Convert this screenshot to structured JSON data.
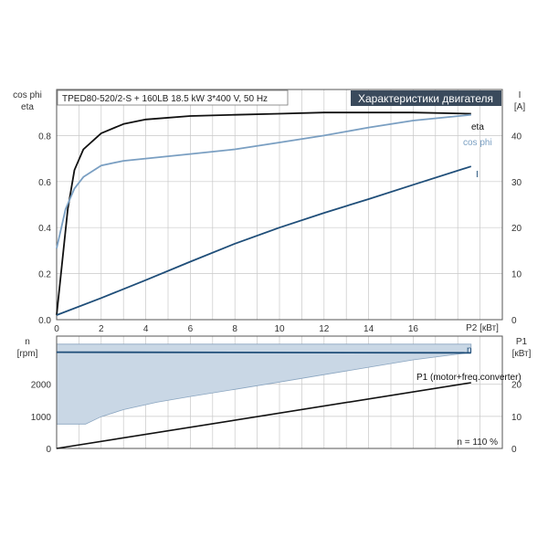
{
  "header": {
    "pump_info": "TPED80-520/2-S + 160LB   18.5 kW   3*400 V, 50 Hz",
    "section_title": "Характеристики двигателя"
  },
  "footer_note": "n = 110 %",
  "colors": {
    "eta": "#111111",
    "cos_phi": "#7a9fc2",
    "current": "#1f4e79",
    "speed_line": "#1f4e79",
    "speed_band_fill": "#c9d7e5",
    "power_line": "#111111",
    "badge_bg": "#3a4a5c"
  },
  "chart_data": [
    {
      "type": "line",
      "xlabel": "P2 [кВт]",
      "ylabel_left": [
        "cos phi",
        "eta"
      ],
      "ylabel_right": [
        "I",
        "[A]"
      ],
      "xlim": [
        0,
        20
      ],
      "x_ticks": [
        0,
        2,
        4,
        6,
        8,
        10,
        12,
        14,
        16
      ],
      "x_tick_labels": [
        "0",
        "2",
        "4",
        "6",
        "8",
        "10",
        "12",
        "14",
        "16"
      ],
      "ylim_left": [
        0,
        1.0
      ],
      "y_ticks_left": [
        0,
        0.2,
        0.4,
        0.6,
        0.8
      ],
      "y_tick_labels_left": [
        "0.0",
        "0.2",
        "0.4",
        "0.6",
        "0.8"
      ],
      "ylim_right": [
        0,
        50
      ],
      "y_ticks_right": [
        0,
        10,
        20,
        30,
        40
      ],
      "y_tick_labels_right": [
        "0",
        "10",
        "20",
        "30",
        "40"
      ],
      "grid": true,
      "series": [
        {
          "name": "eta",
          "axis": "left",
          "x": [
            0,
            0.5,
            0.8,
            1.2,
            2,
            3,
            4,
            6,
            8,
            10,
            12,
            14,
            16,
            18.6
          ],
          "y": [
            0.02,
            0.48,
            0.65,
            0.74,
            0.81,
            0.85,
            0.87,
            0.885,
            0.89,
            0.895,
            0.9,
            0.9,
            0.9,
            0.895
          ]
        },
        {
          "name": "cos phi",
          "axis": "left",
          "x": [
            0,
            0.4,
            0.8,
            1.2,
            2,
            3,
            4,
            6,
            8,
            10,
            12,
            14,
            16,
            18.6
          ],
          "y": [
            0.31,
            0.48,
            0.57,
            0.62,
            0.67,
            0.69,
            0.7,
            0.72,
            0.74,
            0.77,
            0.8,
            0.835,
            0.865,
            0.89
          ]
        },
        {
          "name": "I",
          "axis": "right",
          "x": [
            0,
            2,
            4,
            6,
            8,
            10,
            12,
            14,
            16,
            18.6
          ],
          "y": [
            1,
            4.7,
            8.6,
            12.6,
            16.5,
            20,
            23.2,
            26.2,
            29.3,
            33.3
          ]
        }
      ]
    },
    {
      "type": "line",
      "xlabel": "",
      "ylabel_left": [
        "n",
        "[rpm]"
      ],
      "ylabel_right": [
        "P1",
        "[кВт]"
      ],
      "xlim": [
        0,
        20
      ],
      "ylim_left": [
        0,
        3500
      ],
      "y_ticks_left": [
        0,
        1000,
        2000
      ],
      "y_tick_labels_left": [
        "0",
        "1000",
        "2000"
      ],
      "ylim_right": [
        0,
        35
      ],
      "y_ticks_right": [
        0,
        10,
        20
      ],
      "y_tick_labels_right": [
        "0",
        "10",
        "20"
      ],
      "grid": true,
      "series": [
        {
          "name": "n",
          "axis": "left",
          "x": [
            0,
            18.6
          ],
          "y": [
            3000,
            2980
          ]
        },
        {
          "name": "P1 (motor+freq.converter)",
          "axis": "right",
          "x": [
            0,
            18.6
          ],
          "y": [
            0,
            20.5
          ]
        }
      ],
      "speed_range": {
        "x": [
          0,
          1.3,
          2,
          3,
          4.5,
          6,
          8,
          10,
          12,
          14,
          16,
          18.6
        ],
        "n_max": [
          3250,
          3250,
          3250,
          3250,
          3250,
          3250,
          3250,
          3250,
          3250,
          3250,
          3250,
          3250
        ],
        "n_min": [
          760,
          760,
          990,
          1210,
          1440,
          1620,
          1840,
          2070,
          2300,
          2530,
          2760,
          2990
        ]
      }
    }
  ]
}
